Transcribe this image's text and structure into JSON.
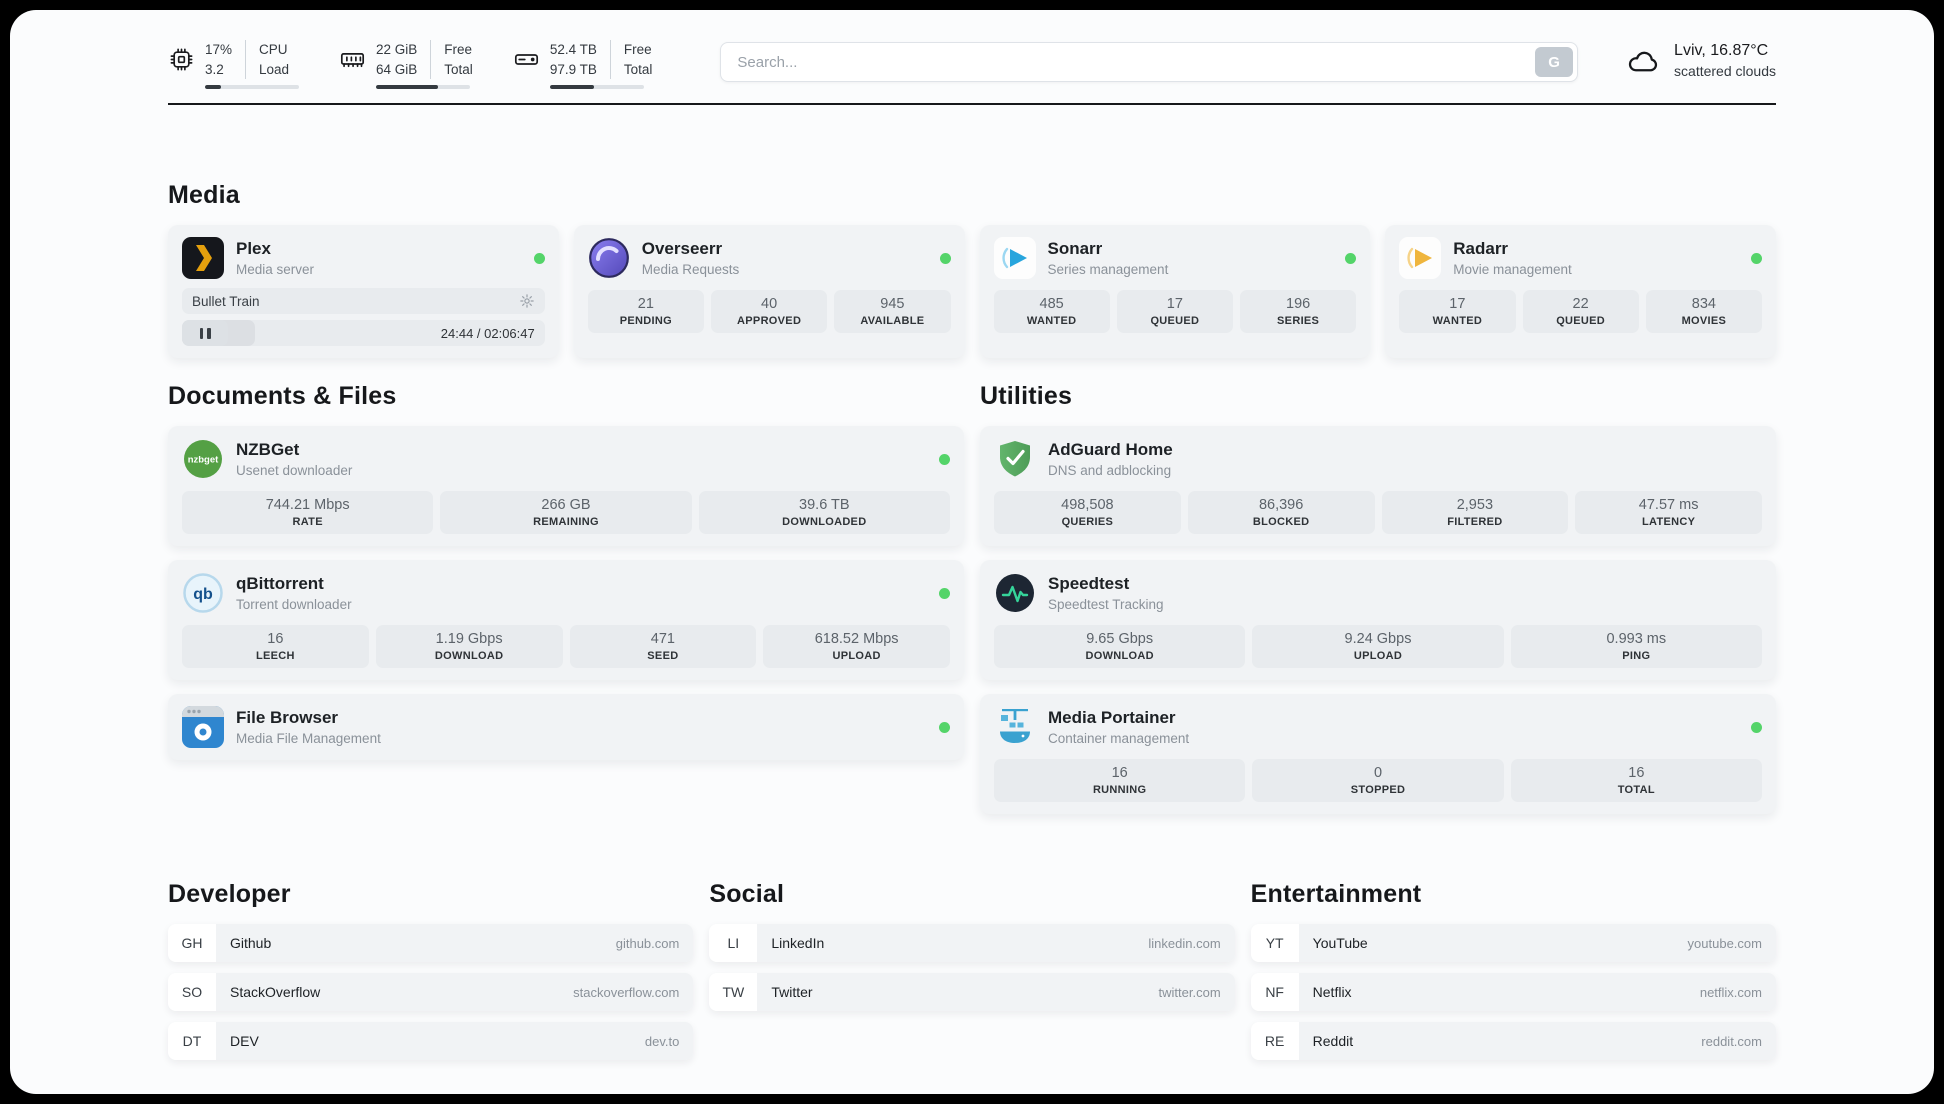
{
  "colors": {
    "status_online": "#54d469",
    "plex_accent": "#e5a00d",
    "overseerr_accent": "#5f4fc0",
    "sonarr_accent": "#27a5dd",
    "radarr_accent": "#efb53d",
    "nzbget_accent": "#54a044",
    "qbittorrent_accent": "#14518c",
    "filebrowser_accent": "#2f86cf",
    "adguard_accent": "#57a05f",
    "speedtest_accent": "#35d49a",
    "portainer_accent": "#3aa2d0"
  },
  "topbar": {
    "cpu": {
      "value_row1": "17%",
      "value_row2": "3.2",
      "label_row1": "CPU",
      "label_row2": "Load",
      "progress_pct": 17
    },
    "ram": {
      "value_row1": "22 GiB",
      "value_row2": "64 GiB",
      "label_row1": "Free",
      "label_row2": "Total",
      "progress_pct": 66
    },
    "disk": {
      "value_row1": "52.4 TB",
      "value_row2": "97.9 TB",
      "label_row1": "Free",
      "label_row2": "Total",
      "progress_pct": 47
    },
    "search": {
      "placeholder": "Search...",
      "button_label": "G"
    },
    "weather": {
      "location_temp": "Lviv, 16.87°C",
      "condition": "scattered clouds"
    }
  },
  "media": {
    "heading": "Media",
    "plex": {
      "name": "Plex",
      "description": "Media server",
      "now_playing": "Bullet Train",
      "elapsed_total": "24:44 / 02:06:47",
      "progress_pct": 20
    },
    "overseerr": {
      "name": "Overseerr",
      "description": "Media Requests",
      "stats": [
        {
          "value": "21",
          "label": "PENDING"
        },
        {
          "value": "40",
          "label": "APPROVED"
        },
        {
          "value": "945",
          "label": "AVAILABLE"
        }
      ]
    },
    "sonarr": {
      "name": "Sonarr",
      "description": "Series management",
      "stats": [
        {
          "value": "485",
          "label": "WANTED"
        },
        {
          "value": "17",
          "label": "QUEUED"
        },
        {
          "value": "196",
          "label": "SERIES"
        }
      ]
    },
    "radarr": {
      "name": "Radarr",
      "description": "Movie management",
      "stats": [
        {
          "value": "17",
          "label": "WANTED"
        },
        {
          "value": "22",
          "label": "QUEUED"
        },
        {
          "value": "834",
          "label": "MOVIES"
        }
      ]
    }
  },
  "documents": {
    "heading": "Documents & Files",
    "nzbget": {
      "name": "NZBGet",
      "description": "Usenet downloader",
      "icon_label": "nzbget",
      "stats": [
        {
          "value": "744.21 Mbps",
          "label": "RATE"
        },
        {
          "value": "266 GB",
          "label": "REMAINING"
        },
        {
          "value": "39.6 TB",
          "label": "DOWNLOADED"
        }
      ]
    },
    "qbittorrent": {
      "name": "qBittorrent",
      "description": "Torrent downloader",
      "icon_label": "qb",
      "stats": [
        {
          "value": "16",
          "label": "LEECH"
        },
        {
          "value": "1.19 Gbps",
          "label": "DOWNLOAD"
        },
        {
          "value": "471",
          "label": "SEED"
        },
        {
          "value": "618.52 Mbps",
          "label": "UPLOAD"
        }
      ]
    },
    "filebrowser": {
      "name": "File Browser",
      "description": "Media File Management"
    }
  },
  "utilities": {
    "heading": "Utilities",
    "adguard": {
      "name": "AdGuard Home",
      "description": "DNS and adblocking",
      "stats": [
        {
          "value": "498,508",
          "label": "QUERIES"
        },
        {
          "value": "86,396",
          "label": "BLOCKED"
        },
        {
          "value": "2,953",
          "label": "FILTERED"
        },
        {
          "value": "47.57 ms",
          "label": "LATENCY"
        }
      ]
    },
    "speedtest": {
      "name": "Speedtest",
      "description": "Speedtest Tracking",
      "stats": [
        {
          "value": "9.65 Gbps",
          "label": "DOWNLOAD"
        },
        {
          "value": "9.24 Gbps",
          "label": "UPLOAD"
        },
        {
          "value": "0.993 ms",
          "label": "PING"
        }
      ]
    },
    "portainer": {
      "name": "Media Portainer",
      "description": "Container management",
      "stats": [
        {
          "value": "16",
          "label": "RUNNING"
        },
        {
          "value": "0",
          "label": "STOPPED"
        },
        {
          "value": "16",
          "label": "TOTAL"
        }
      ]
    }
  },
  "bookmarks": {
    "developer": {
      "heading": "Developer",
      "items": [
        {
          "abbr": "GH",
          "name": "Github",
          "url": "github.com"
        },
        {
          "abbr": "SO",
          "name": "StackOverflow",
          "url": "stackoverflow.com"
        },
        {
          "abbr": "DT",
          "name": "DEV",
          "url": "dev.to"
        }
      ]
    },
    "social": {
      "heading": "Social",
      "items": [
        {
          "abbr": "LI",
          "name": "LinkedIn",
          "url": "linkedin.com"
        },
        {
          "abbr": "TW",
          "name": "Twitter",
          "url": "twitter.com"
        }
      ]
    },
    "entertainment": {
      "heading": "Entertainment",
      "items": [
        {
          "abbr": "YT",
          "name": "YouTube",
          "url": "youtube.com"
        },
        {
          "abbr": "NF",
          "name": "Netflix",
          "url": "netflix.com"
        },
        {
          "abbr": "RE",
          "name": "Reddit",
          "url": "reddit.com"
        }
      ]
    }
  }
}
